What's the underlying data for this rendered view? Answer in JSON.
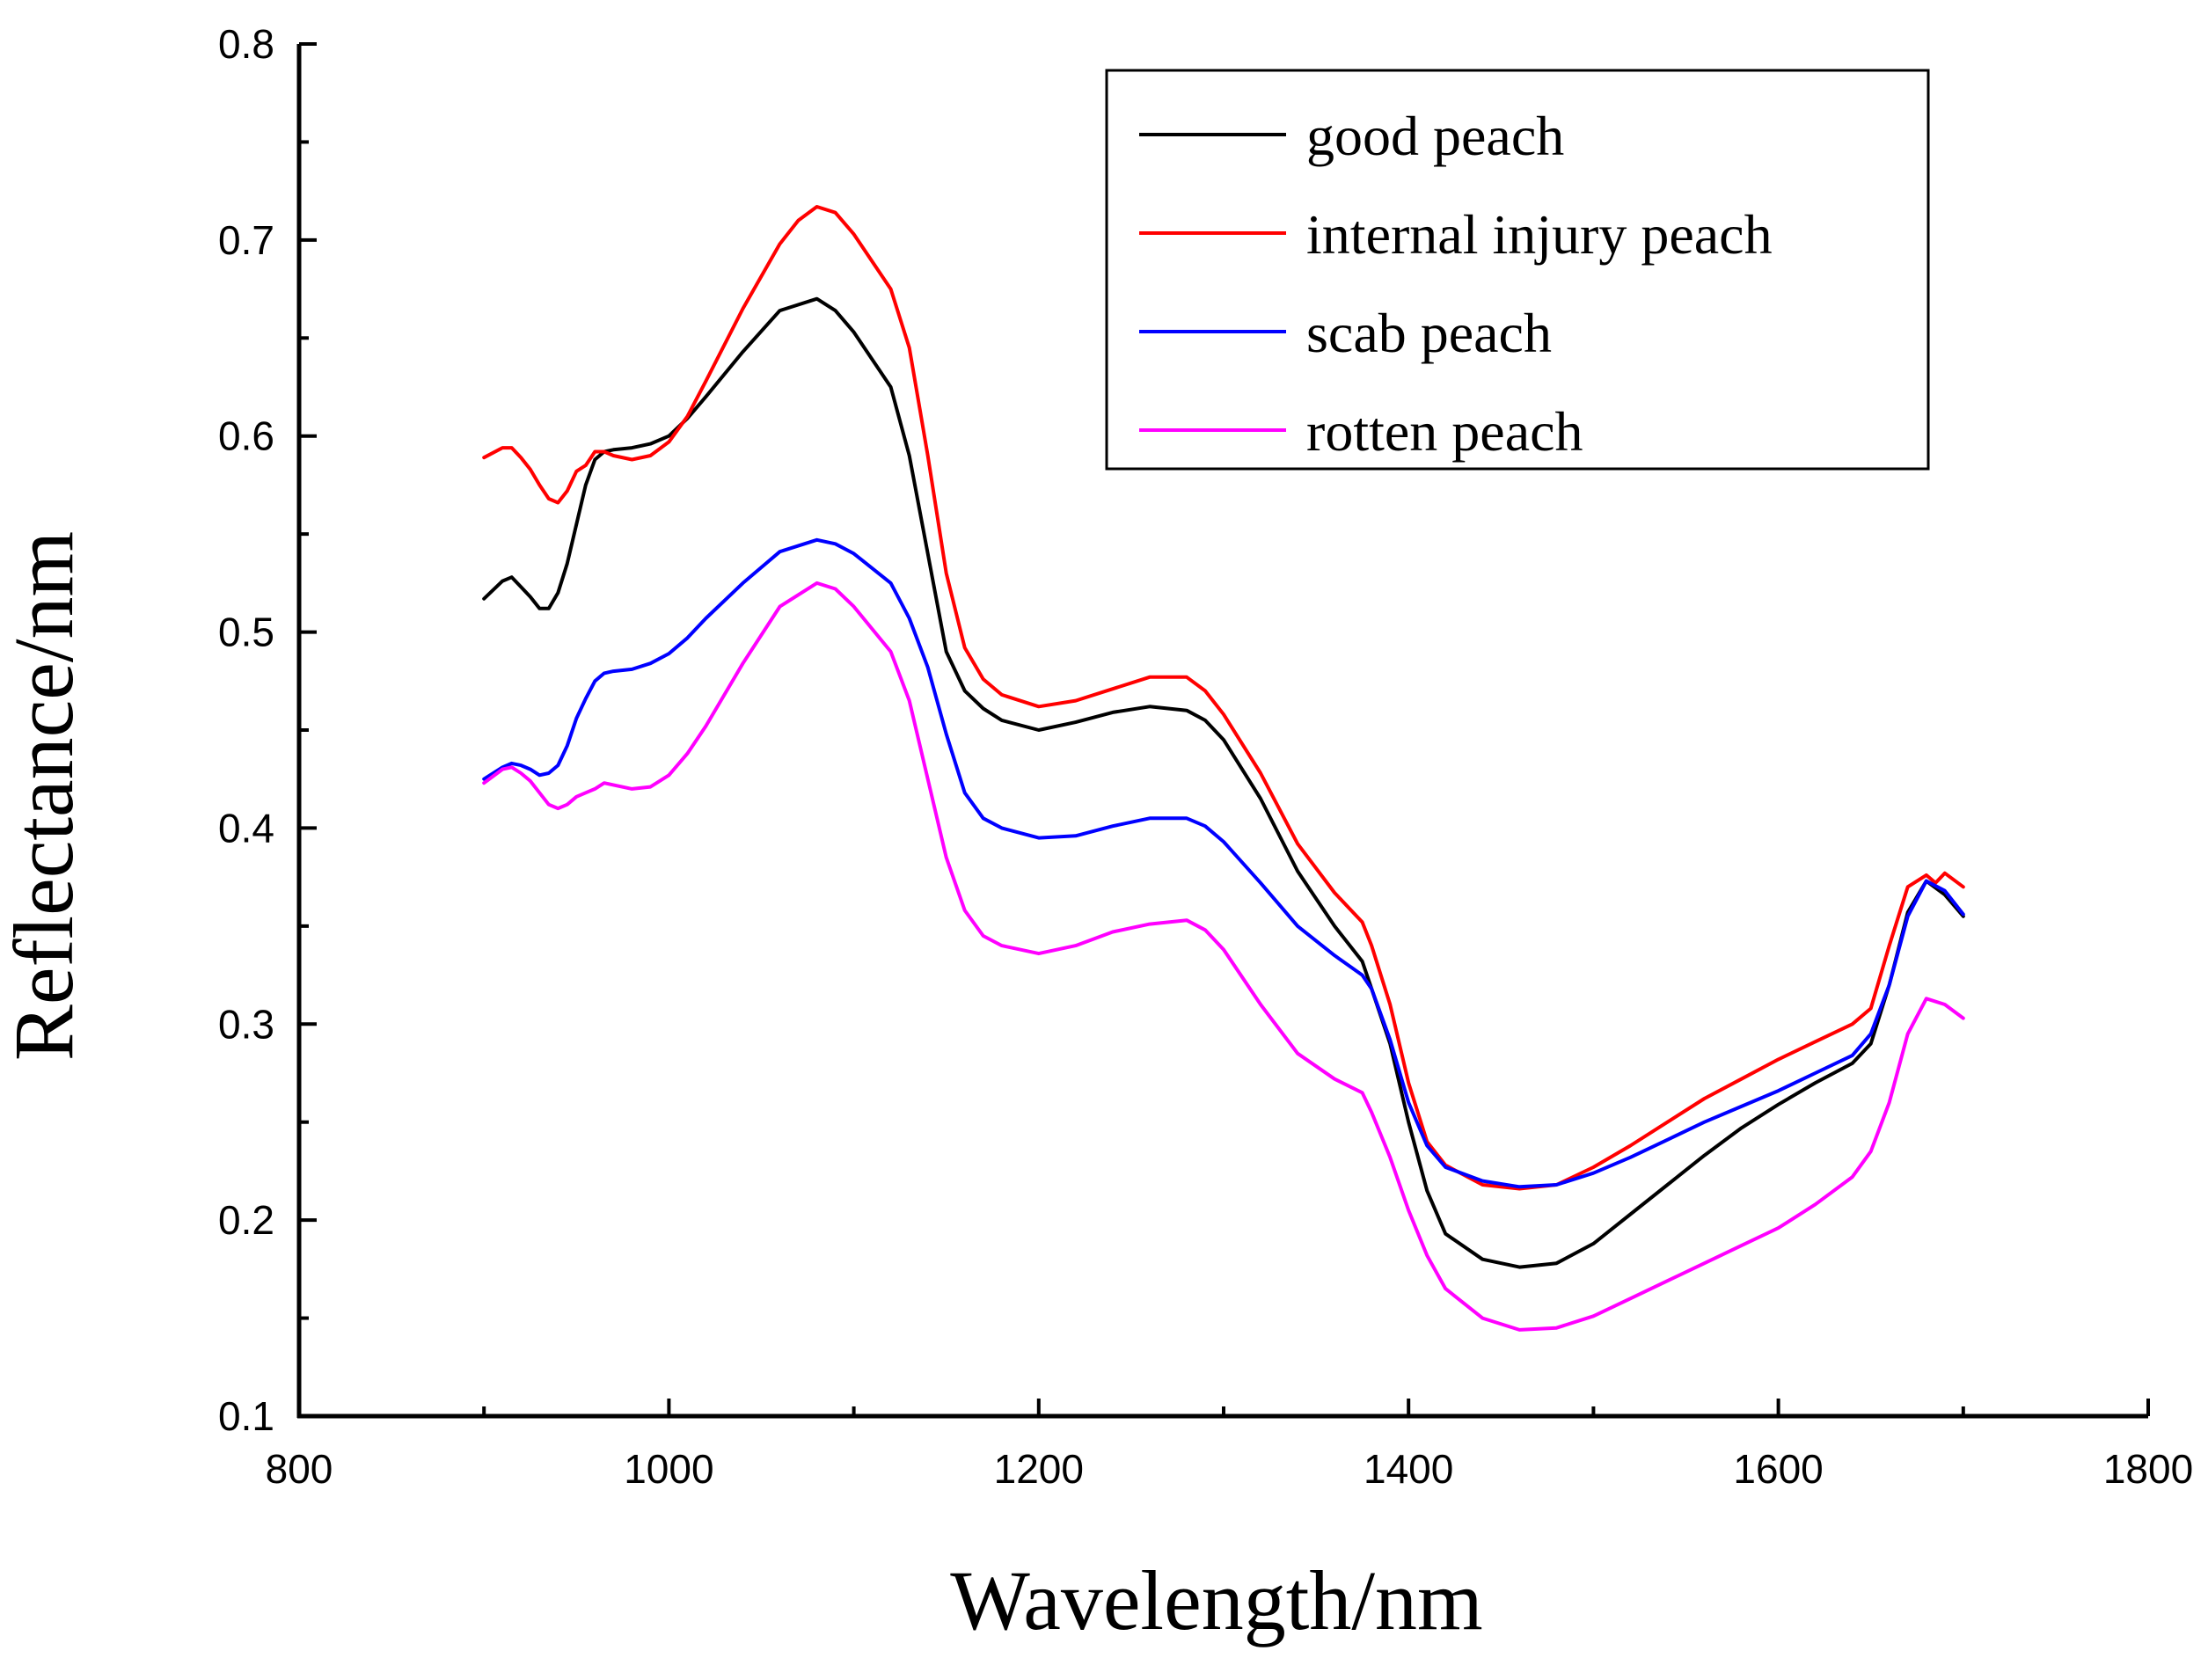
{
  "chart_data": {
    "type": "line",
    "title": "",
    "xlabel": "Wavelength/nm",
    "ylabel": "Reflectance/nm",
    "xlim": [
      800,
      1800
    ],
    "ylim": [
      0.1,
      0.8
    ],
    "x_ticks": [
      800,
      1000,
      1200,
      1400,
      1600,
      1800
    ],
    "y_ticks": [
      0.1,
      0.2,
      0.3,
      0.4,
      0.5,
      0.6,
      0.7,
      0.8
    ],
    "x_tick_labels": [
      "800",
      "1000",
      "1200",
      "1400",
      "1600",
      "1800"
    ],
    "y_tick_labels": [
      "0.1",
      "0.2",
      "0.3",
      "0.4",
      "0.5",
      "0.6",
      "0.7",
      "0.8"
    ],
    "grid": false,
    "legend_position": "top-right",
    "series": [
      {
        "name": "good peach",
        "color": "#000000",
        "x": [
          900,
          910,
          915,
          920,
          925,
          930,
          935,
          940,
          945,
          950,
          955,
          960,
          965,
          970,
          980,
          990,
          1000,
          1010,
          1020,
          1040,
          1060,
          1080,
          1090,
          1100,
          1120,
          1130,
          1140,
          1150,
          1160,
          1170,
          1180,
          1200,
          1220,
          1240,
          1260,
          1280,
          1290,
          1300,
          1320,
          1340,
          1360,
          1375,
          1380,
          1390,
          1400,
          1410,
          1420,
          1440,
          1460,
          1480,
          1500,
          1520,
          1540,
          1560,
          1580,
          1600,
          1620,
          1640,
          1650,
          1660,
          1670,
          1680,
          1690,
          1700
        ],
        "y": [
          0.517,
          0.526,
          0.528,
          0.523,
          0.518,
          0.512,
          0.512,
          0.52,
          0.535,
          0.555,
          0.575,
          0.588,
          0.592,
          0.593,
          0.594,
          0.596,
          0.6,
          0.609,
          0.62,
          0.643,
          0.664,
          0.67,
          0.664,
          0.653,
          0.625,
          0.59,
          0.54,
          0.49,
          0.47,
          0.461,
          0.455,
          0.45,
          0.454,
          0.459,
          0.462,
          0.46,
          0.455,
          0.445,
          0.415,
          0.378,
          0.35,
          0.332,
          0.318,
          0.29,
          0.25,
          0.215,
          0.193,
          0.18,
          0.176,
          0.178,
          0.188,
          0.203,
          0.218,
          0.233,
          0.247,
          0.259,
          0.27,
          0.28,
          0.29,
          0.32,
          0.357,
          0.373,
          0.366,
          0.355
        ]
      },
      {
        "name": "internal injury peach",
        "color": "#ff0000",
        "x": [
          900,
          910,
          915,
          920,
          925,
          930,
          935,
          940,
          945,
          950,
          955,
          960,
          965,
          970,
          980,
          990,
          1000,
          1010,
          1020,
          1040,
          1060,
          1070,
          1080,
          1090,
          1100,
          1120,
          1130,
          1140,
          1150,
          1160,
          1170,
          1180,
          1200,
          1220,
          1240,
          1260,
          1280,
          1290,
          1300,
          1320,
          1340,
          1360,
          1375,
          1380,
          1390,
          1400,
          1410,
          1420,
          1440,
          1460,
          1480,
          1500,
          1520,
          1540,
          1560,
          1580,
          1600,
          1620,
          1640,
          1650,
          1660,
          1670,
          1680,
          1685,
          1690,
          1700
        ],
        "y": [
          0.589,
          0.594,
          0.594,
          0.589,
          0.583,
          0.575,
          0.568,
          0.566,
          0.572,
          0.582,
          0.585,
          0.592,
          0.592,
          0.59,
          0.588,
          0.59,
          0.597,
          0.61,
          0.628,
          0.665,
          0.698,
          0.71,
          0.717,
          0.714,
          0.703,
          0.675,
          0.645,
          0.59,
          0.53,
          0.492,
          0.476,
          0.468,
          0.462,
          0.465,
          0.471,
          0.477,
          0.477,
          0.47,
          0.458,
          0.428,
          0.392,
          0.367,
          0.352,
          0.34,
          0.31,
          0.27,
          0.24,
          0.228,
          0.218,
          0.216,
          0.218,
          0.227,
          0.238,
          0.25,
          0.262,
          0.272,
          0.282,
          0.291,
          0.3,
          0.308,
          0.34,
          0.37,
          0.376,
          0.372,
          0.377,
          0.37
        ]
      },
      {
        "name": "scab peach",
        "color": "#0000ff",
        "x": [
          900,
          910,
          915,
          920,
          925,
          930,
          935,
          940,
          945,
          950,
          955,
          960,
          965,
          970,
          980,
          990,
          1000,
          1010,
          1020,
          1040,
          1060,
          1080,
          1090,
          1100,
          1120,
          1130,
          1140,
          1150,
          1160,
          1170,
          1180,
          1200,
          1220,
          1240,
          1260,
          1280,
          1290,
          1300,
          1320,
          1340,
          1360,
          1375,
          1380,
          1390,
          1400,
          1410,
          1420,
          1440,
          1460,
          1480,
          1500,
          1520,
          1540,
          1560,
          1580,
          1600,
          1620,
          1640,
          1650,
          1660,
          1670,
          1680,
          1690,
          1700
        ],
        "y": [
          0.425,
          0.431,
          0.433,
          0.432,
          0.43,
          0.427,
          0.428,
          0.432,
          0.442,
          0.456,
          0.466,
          0.475,
          0.479,
          0.48,
          0.481,
          0.484,
          0.489,
          0.497,
          0.507,
          0.525,
          0.541,
          0.547,
          0.545,
          0.54,
          0.525,
          0.507,
          0.482,
          0.448,
          0.418,
          0.405,
          0.4,
          0.395,
          0.396,
          0.401,
          0.405,
          0.405,
          0.401,
          0.393,
          0.372,
          0.35,
          0.335,
          0.325,
          0.318,
          0.292,
          0.26,
          0.238,
          0.227,
          0.22,
          0.217,
          0.218,
          0.224,
          0.232,
          0.241,
          0.25,
          0.258,
          0.266,
          0.275,
          0.284,
          0.295,
          0.32,
          0.355,
          0.373,
          0.368,
          0.356
        ]
      },
      {
        "name": "rotten peach",
        "color": "#ff00ff",
        "x": [
          900,
          910,
          915,
          920,
          925,
          930,
          935,
          940,
          945,
          950,
          955,
          960,
          965,
          970,
          980,
          990,
          1000,
          1010,
          1020,
          1040,
          1060,
          1080,
          1090,
          1100,
          1120,
          1130,
          1140,
          1150,
          1160,
          1170,
          1180,
          1200,
          1220,
          1240,
          1260,
          1280,
          1290,
          1300,
          1320,
          1340,
          1360,
          1375,
          1380,
          1390,
          1400,
          1410,
          1420,
          1440,
          1460,
          1480,
          1500,
          1520,
          1540,
          1560,
          1580,
          1600,
          1620,
          1640,
          1650,
          1660,
          1670,
          1680,
          1690,
          1700
        ],
        "y": [
          0.423,
          0.43,
          0.431,
          0.428,
          0.424,
          0.418,
          0.412,
          0.41,
          0.412,
          0.416,
          0.418,
          0.42,
          0.423,
          0.422,
          0.42,
          0.421,
          0.427,
          0.438,
          0.452,
          0.484,
          0.513,
          0.525,
          0.522,
          0.513,
          0.49,
          0.465,
          0.425,
          0.385,
          0.358,
          0.345,
          0.34,
          0.336,
          0.34,
          0.347,
          0.351,
          0.353,
          0.348,
          0.338,
          0.31,
          0.285,
          0.272,
          0.265,
          0.255,
          0.232,
          0.205,
          0.182,
          0.165,
          0.15,
          0.144,
          0.145,
          0.151,
          0.16,
          0.169,
          0.178,
          0.187,
          0.196,
          0.208,
          0.222,
          0.235,
          0.26,
          0.295,
          0.313,
          0.31,
          0.303
        ]
      }
    ]
  }
}
